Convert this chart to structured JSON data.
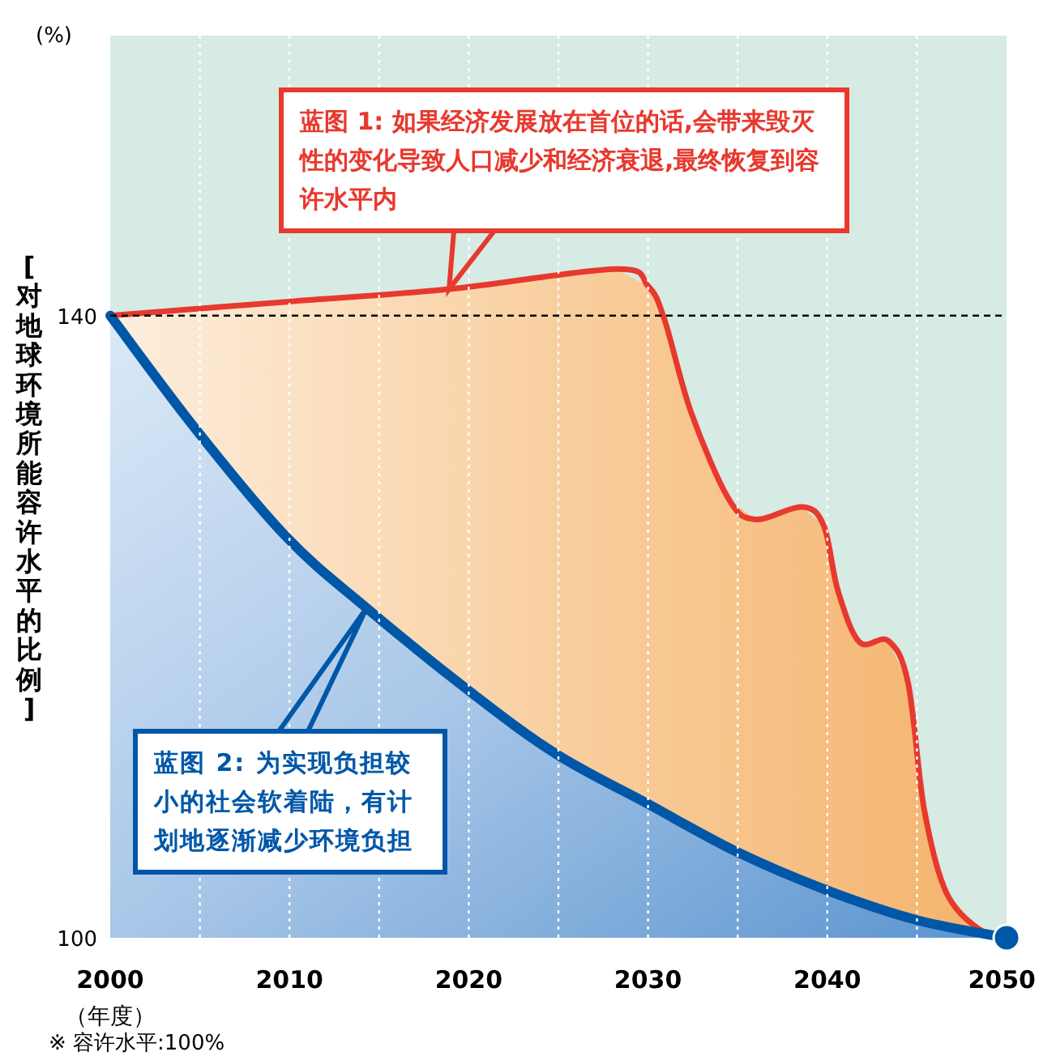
{
  "chart_data": {
    "type": "area",
    "xlabel": "（年度）",
    "ylabel": "[对地球环境所能容许水平的比例]",
    "xlim": [
      2000,
      2050
    ],
    "ylim": [
      100,
      158
    ],
    "xticks": [
      2000,
      {
        "value": 2005,
        "label": null
      },
      2010,
      {
        "value": 2015,
        "label": null
      },
      2020,
      {
        "value": 2025,
        "label": null
      },
      2030,
      {
        "value": 2035,
        "label": null
      },
      2040,
      {
        "value": 2045,
        "label": null
      },
      2050
    ],
    "yticks": [
      100,
      140
    ],
    "grid": "x",
    "series": [
      {
        "type": "area",
        "color": "#e8392e",
        "x": [
          2000,
          2010,
          2018.9,
          2028.2,
          2030.0,
          2030.9,
          2032.4,
          2034.5,
          2036.0,
          2038.6,
          2039.8,
          2040.6,
          2041.8,
          2043.4,
          2044.5,
          2045.4,
          2046.6,
          2048.4,
          2050
        ],
        "values": [
          140,
          140.9,
          141.7,
          143.0,
          141.9,
          139.8,
          133.8,
          128.2,
          126.9,
          127.7,
          126.5,
          122.3,
          119.0,
          119.1,
          116.4,
          108.3,
          103.0,
          100.6,
          100
        ]
      },
      {
        "type": "area",
        "color": "#0057a8",
        "x": [
          2000,
          2004.7,
          2009.8,
          2014.3,
          2020.1,
          2024.9,
          2030.0,
          2035.0,
          2040.1,
          2045.1,
          2050
        ],
        "values": [
          140,
          132.8,
          125.8,
          121.2,
          115.8,
          111.8,
          108.6,
          105.5,
          103.0,
          101.1,
          100
        ]
      },
      {
        "type": "scatter",
        "marker": "circle",
        "color": "#0057a8",
        "x": [
          2050
        ],
        "values": [
          100
        ]
      }
    ],
    "ref_lines": [
      {
        "axis": "y",
        "value": 140,
        "line_style": "dashed",
        "color": "#000000"
      }
    ],
    "annotations": [
      "(%)",
      "蓝图 1: 如果经济发展放在首位的话,会带来毁灭性的变化导致人口减少和经济衰退,最终恢复到容许水平内",
      "蓝图 2: 为实现负担较小的社会软着陆，有计划地逐渐减少环境负担",
      "※ 容许水平:100%"
    ]
  }
}
